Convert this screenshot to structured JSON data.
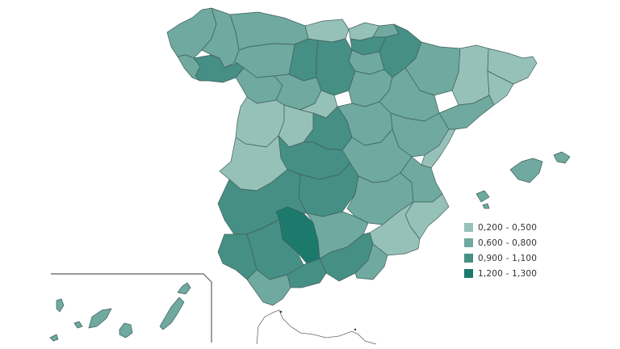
{
  "legend": {
    "items": [
      {
        "label": "0,200 - 0,500",
        "color": "#96c1b8"
      },
      {
        "label": "0,600 - 0,800",
        "color": "#6fa99f"
      },
      {
        "label": "0,900 - 1,100",
        "color": "#468f84"
      },
      {
        "label": "1,200 - 1,300",
        "color": "#1c7a6c"
      }
    ]
  },
  "regions": [
    {
      "name": "A Coruña",
      "cls": 1
    },
    {
      "name": "Lugo",
      "cls": 1
    },
    {
      "name": "Pontevedra",
      "cls": 1
    },
    {
      "name": "Ourense",
      "cls": 2
    },
    {
      "name": "Asturias",
      "cls": 1
    },
    {
      "name": "Cantabria",
      "cls": 0
    },
    {
      "name": "Bizkaia",
      "cls": 0
    },
    {
      "name": "Gipuzkoa",
      "cls": 1
    },
    {
      "name": "Álava",
      "cls": 2
    },
    {
      "name": "Navarra",
      "cls": 2
    },
    {
      "name": "La Rioja",
      "cls": 1
    },
    {
      "name": "León",
      "cls": 1
    },
    {
      "name": "Palencia",
      "cls": 2
    },
    {
      "name": "Burgos",
      "cls": 2
    },
    {
      "name": "Zamora",
      "cls": 1
    },
    {
      "name": "Valladolid",
      "cls": 1
    },
    {
      "name": "Soria",
      "cls": 1
    },
    {
      "name": "Salamanca",
      "cls": 0
    },
    {
      "name": "Ávila",
      "cls": 0
    },
    {
      "name": "Segovia",
      "cls": 0
    },
    {
      "name": "Huesca",
      "cls": 1
    },
    {
      "name": "Zaragoza",
      "cls": 1
    },
    {
      "name": "Teruel",
      "cls": 1
    },
    {
      "name": "Lleida",
      "cls": 0
    },
    {
      "name": "Girona",
      "cls": 0
    },
    {
      "name": "Barcelona",
      "cls": 0
    },
    {
      "name": "Tarragona",
      "cls": 1
    },
    {
      "name": "Madrid",
      "cls": 2
    },
    {
      "name": "Guadalajara",
      "cls": 1
    },
    {
      "name": "Cuenca",
      "cls": 1
    },
    {
      "name": "Toledo",
      "cls": 2
    },
    {
      "name": "Ciudad Real",
      "cls": 2
    },
    {
      "name": "Albacete",
      "cls": 1
    },
    {
      "name": "Cáceres",
      "cls": 0
    },
    {
      "name": "Badajoz",
      "cls": 2
    },
    {
      "name": "Castellón",
      "cls": 0
    },
    {
      "name": "Valencia",
      "cls": 1
    },
    {
      "name": "Alicante",
      "cls": 0
    },
    {
      "name": "Murcia",
      "cls": 0
    },
    {
      "name": "Huelva",
      "cls": 2
    },
    {
      "name": "Sevilla",
      "cls": 2
    },
    {
      "name": "Córdoba",
      "cls": 3
    },
    {
      "name": "Jaén",
      "cls": 1
    },
    {
      "name": "Cádiz",
      "cls": 1
    },
    {
      "name": "Málaga",
      "cls": 2
    },
    {
      "name": "Granada",
      "cls": 2
    },
    {
      "name": "Almería",
      "cls": 1
    },
    {
      "name": "Baleares",
      "cls": 1
    },
    {
      "name": "Canarias",
      "cls": 1
    }
  ]
}
